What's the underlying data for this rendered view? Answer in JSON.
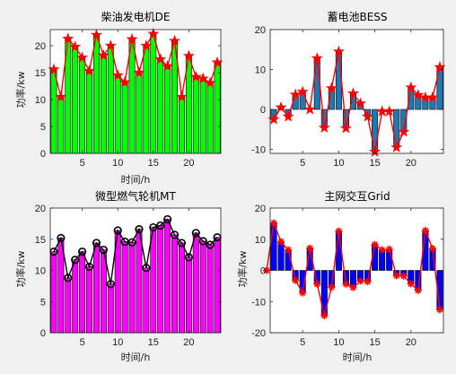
{
  "chart_data": [
    {
      "type": "bar",
      "title": "柴油发电机DE",
      "xlabel": "时间/h",
      "ylabel": "功率/kw",
      "xlim": [
        0.5,
        24.5
      ],
      "ylim": [
        0,
        23
      ],
      "xticks": [
        5,
        10,
        15,
        20
      ],
      "yticks": [
        0,
        5,
        10,
        15,
        20
      ],
      "bar_color": "#00ff00",
      "line_color": "#ff0000",
      "marker": "star",
      "x": [
        1,
        2,
        3,
        4,
        5,
        6,
        7,
        8,
        9,
        10,
        11,
        12,
        13,
        14,
        15,
        16,
        17,
        18,
        19,
        20,
        21,
        22,
        23,
        24
      ],
      "values": [
        15.6,
        10.5,
        21.3,
        19.8,
        17.8,
        15.3,
        22.0,
        18.2,
        20.0,
        14.5,
        13.2,
        21.2,
        15.0,
        20.0,
        22.2,
        17.5,
        16.2,
        20.9,
        10.5,
        18.1,
        14.2,
        13.9,
        13.1,
        16.9
      ]
    },
    {
      "type": "bar",
      "title": "蓄电池BESS",
      "xlabel": "",
      "ylabel": "",
      "xlim": [
        0.5,
        24.5
      ],
      "ylim": [
        -11,
        20
      ],
      "xticks": [
        5,
        10,
        15,
        20
      ],
      "yticks": [
        -10,
        0,
        10,
        20
      ],
      "bar_color": "#1f77b4",
      "line_color": "#ff0000",
      "marker": "star",
      "x": [
        1,
        2,
        3,
        4,
        5,
        6,
        7,
        8,
        9,
        10,
        11,
        12,
        13,
        14,
        15,
        16,
        17,
        18,
        19,
        20,
        21,
        22,
        23,
        24
      ],
      "values": [
        -2.5,
        0.5,
        -1.8,
        3.7,
        4.4,
        0.0,
        12.8,
        -4.6,
        5.3,
        14.5,
        -4.7,
        4.0,
        1.5,
        -1.8,
        -10.6,
        -0.5,
        -0.5,
        -9.5,
        -5.6,
        5.5,
        3.6,
        3.0,
        3.0,
        10.6
      ]
    },
    {
      "type": "bar",
      "title": "微型燃气轮机MT",
      "xlabel": "时间/h",
      "ylabel": "功率/kw",
      "xlim": [
        0.5,
        24.5
      ],
      "ylim": [
        0,
        20
      ],
      "xticks": [
        5,
        10,
        15,
        20
      ],
      "yticks": [
        0,
        5,
        10,
        15,
        20
      ],
      "bar_color": "#ff00ff",
      "line_color": "#000000",
      "marker": "circle",
      "x": [
        1,
        2,
        3,
        4,
        5,
        6,
        7,
        8,
        9,
        10,
        11,
        12,
        13,
        14,
        15,
        16,
        17,
        18,
        19,
        20,
        21,
        22,
        23,
        24
      ],
      "values": [
        13.0,
        15.2,
        8.8,
        11.7,
        13.0,
        10.6,
        14.4,
        13.3,
        7.8,
        16.4,
        14.6,
        14.5,
        16.6,
        10.4,
        16.9,
        17.2,
        18.2,
        15.7,
        14.4,
        12.1,
        16.0,
        14.7,
        14.1,
        15.3
      ]
    },
    {
      "type": "bar",
      "title": "主网交互Grid",
      "xlabel": "时间/h",
      "ylabel": "功率/kw",
      "xlim": [
        0.5,
        24.5
      ],
      "ylim": [
        -20,
        20
      ],
      "xticks": [
        5,
        10,
        15,
        20
      ],
      "yticks": [
        -20,
        -10,
        0,
        10,
        20
      ],
      "bar_color": "#0000ff",
      "line_color": "#ff0000",
      "marker": "asterisk",
      "x": [
        0,
        1,
        2,
        3,
        4,
        5,
        6,
        7,
        8,
        9,
        10,
        11,
        12,
        13,
        14,
        15,
        16,
        17,
        18,
        19,
        20,
        21,
        22,
        23,
        24
      ],
      "values": [
        0.0,
        15.2,
        9.2,
        6.6,
        -3.2,
        -7.2,
        7.1,
        -4.4,
        -14.5,
        -5.4,
        12.6,
        -4.4,
        -5.5,
        -3.4,
        -3.6,
        8.3,
        6.6,
        6.8,
        -1.7,
        -1.8,
        -4.3,
        -6.4,
        12.8,
        7.0,
        -12.6
      ]
    }
  ]
}
